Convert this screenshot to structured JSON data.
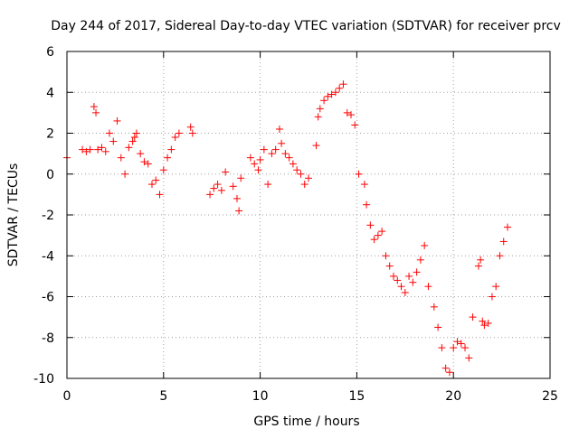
{
  "chart_data": {
    "type": "scatter",
    "title": "Day 244 of 2017, Sidereal Day-to-day VTEC variation (SDTVAR) for receiver prcv",
    "xlabel": "GPS time / hours",
    "ylabel": "SDTVAR / TECUs",
    "xlim": [
      0,
      25
    ],
    "ylim": [
      -10,
      6
    ],
    "xticks": [
      "0",
      "5",
      "10",
      "15",
      "20",
      "25"
    ],
    "yticks": [
      "-10",
      "-8",
      "-6",
      "-4",
      "-2",
      "0",
      "2",
      "4",
      "6"
    ],
    "grid": true,
    "marker": "plus",
    "color": "#ff0000",
    "series": [
      {
        "x": [
          0.0,
          0.8,
          1.0,
          1.2,
          1.4,
          1.5,
          1.6,
          1.8,
          2.0,
          2.2,
          2.4,
          2.6,
          2.8,
          3.0,
          3.2,
          3.4,
          3.5,
          3.6,
          3.8,
          4.0,
          4.2,
          4.4,
          4.6,
          4.8,
          5.0,
          5.2,
          5.4,
          5.6,
          5.8,
          6.4,
          6.5,
          7.4,
          7.6,
          7.8,
          8.0,
          8.2,
          8.6,
          8.8,
          8.9,
          9.0,
          9.5,
          9.7,
          9.9,
          10.0,
          10.2,
          10.4,
          10.6,
          10.8,
          11.0,
          11.1,
          11.3,
          11.5,
          11.7,
          11.9,
          12.1,
          12.3,
          12.5,
          12.9,
          13.0,
          13.1,
          13.3,
          13.5,
          13.7,
          13.9,
          14.1,
          14.3,
          14.5,
          14.7,
          14.9,
          15.1,
          15.4,
          15.5,
          15.7,
          15.9,
          16.1,
          16.3,
          16.5,
          16.7,
          16.9,
          17.1,
          17.3,
          17.5,
          17.7,
          17.9,
          18.1,
          18.3,
          18.5,
          18.7,
          19.0,
          19.2,
          19.4,
          19.6,
          19.8,
          20.0,
          20.2,
          20.4,
          20.6,
          20.8,
          21.0,
          21.3,
          21.4,
          21.5,
          21.6,
          21.8,
          22.0,
          22.2,
          22.4,
          22.6,
          22.8
        ],
        "y": [
          0.8,
          1.2,
          1.1,
          1.2,
          3.3,
          3.0,
          1.2,
          1.3,
          1.1,
          2.0,
          1.6,
          2.6,
          0.8,
          0.0,
          1.3,
          1.6,
          1.8,
          2.0,
          1.0,
          0.6,
          0.5,
          -0.5,
          -0.3,
          -1.0,
          0.2,
          0.8,
          1.2,
          1.8,
          2.0,
          2.3,
          2.0,
          -1.0,
          -0.7,
          -0.5,
          -0.8,
          0.1,
          -0.6,
          -1.2,
          -1.8,
          -0.2,
          0.8,
          0.5,
          0.2,
          0.7,
          1.2,
          -0.5,
          1.0,
          1.2,
          2.2,
          1.5,
          1.0,
          0.8,
          0.5,
          0.2,
          0.0,
          -0.5,
          -0.2,
          1.4,
          2.8,
          3.2,
          3.6,
          3.8,
          3.9,
          4.0,
          4.2,
          4.4,
          3.0,
          2.9,
          2.4,
          0.0,
          -0.5,
          -1.5,
          -2.5,
          -3.2,
          -3.0,
          -2.8,
          -4.0,
          -4.5,
          -5.0,
          -5.2,
          -5.5,
          -5.8,
          -5.0,
          -5.3,
          -4.8,
          -4.2,
          -3.5,
          -5.5,
          -6.5,
          -7.5,
          -8.5,
          -9.5,
          -9.7,
          -8.5,
          -8.2,
          -8.3,
          -8.5,
          -9.0,
          -7.0,
          -4.5,
          -4.2,
          -7.2,
          -7.4,
          -7.3,
          -6.0,
          -5.5,
          -4.0,
          -3.3,
          -2.6
        ]
      }
    ]
  }
}
